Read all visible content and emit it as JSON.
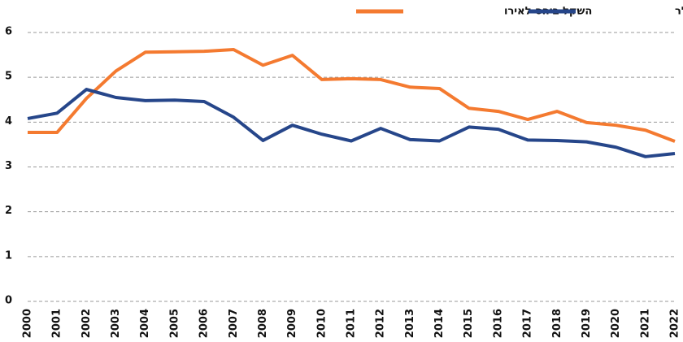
{
  "chart_data": {
    "type": "line",
    "x": [
      2000,
      2001,
      2002,
      2003,
      2004,
      2005,
      2006,
      2007,
      2008,
      2009,
      2010,
      2011,
      2012,
      2013,
      2014,
      2015,
      2016,
      2017,
      2018,
      2019,
      2020,
      2021,
      2022
    ],
    "series": [
      {
        "name": "השקל ביחס לאירו",
        "color": "#f47a30",
        "values": [
          3.77,
          3.77,
          4.53,
          5.14,
          5.56,
          5.57,
          5.58,
          5.62,
          5.27,
          5.49,
          4.95,
          4.97,
          4.95,
          4.78,
          4.75,
          4.31,
          4.24,
          4.06,
          4.24,
          3.99,
          3.93,
          3.82,
          3.57
        ]
      },
      {
        "name": "השקל ביחס לדולר",
        "color": "#26468a",
        "values": [
          4.08,
          4.2,
          4.73,
          4.55,
          4.48,
          4.49,
          4.46,
          4.11,
          3.59,
          3.93,
          3.73,
          3.58,
          3.86,
          3.61,
          3.58,
          3.89,
          3.84,
          3.6,
          3.59,
          3.56,
          3.44,
          3.23,
          3.3
        ]
      }
    ],
    "xlim": [
      2000,
      2022
    ],
    "ylim": [
      0,
      6
    ],
    "yticks": [
      0,
      1,
      2,
      3,
      4,
      5,
      6
    ],
    "grid": true
  }
}
